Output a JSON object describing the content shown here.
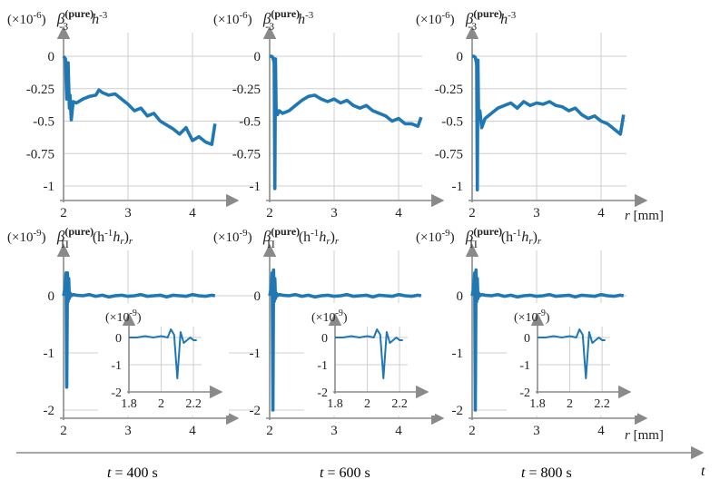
{
  "figure": {
    "time_axis_label": "t",
    "r_axis_label": "r",
    "r_unit": "[mm]",
    "r_unit_bottom": "[mm]",
    "time_labels": [
      {
        "prefix": "t",
        "value": "= 400 s"
      },
      {
        "prefix": "t",
        "value": "= 600 s"
      },
      {
        "prefix": "t",
        "value": "= 800 s"
      }
    ],
    "top_label": {
      "beta": "β",
      "sub": "-3",
      "sup": "(pure)",
      "h": "h",
      "hsup": "-3",
      "scale": "(×10",
      "scale_exp": "-6",
      "scale_close": ")"
    },
    "bottom_label": {
      "beta": "β",
      "sub": "Π",
      "sup": "(pure)",
      "text": " (h",
      "hsup": "-1",
      "hr": "h",
      "hrsub": "r",
      "close": ")",
      "rsub": "r",
      "scale": "(×10",
      "scale_exp": "-9",
      "scale_close": ")"
    },
    "inset_scale": {
      "scale": "(×10",
      "scale_exp": "-9",
      "scale_close": ")"
    }
  },
  "chart_data": [
    {
      "type": "line",
      "panel": "top-1",
      "time": "400 s",
      "x_ticks": [
        "2",
        "3",
        "4"
      ],
      "y_ticks": [
        "0",
        "-0.25",
        "-0.5",
        "-0.75",
        "-1"
      ],
      "xlim": [
        2,
        4.4
      ],
      "ylim": [
        -1.05,
        0.05
      ],
      "series": [
        {
          "x": [
            2.0,
            2.03,
            2.05,
            2.07,
            2.09,
            2.1,
            2.12,
            2.15,
            2.2,
            2.3,
            2.4,
            2.5,
            2.55,
            2.6,
            2.7,
            2.8,
            2.9,
            3.0,
            3.1,
            3.2,
            3.3,
            3.4,
            3.5,
            3.6,
            3.7,
            3.8,
            3.9,
            4.0,
            4.1,
            4.2,
            4.3,
            4.35
          ],
          "y": [
            0.0,
            -0.02,
            -0.33,
            -0.05,
            -0.4,
            -0.3,
            -0.49,
            -0.35,
            -0.36,
            -0.33,
            -0.31,
            -0.3,
            -0.26,
            -0.28,
            -0.3,
            -0.29,
            -0.33,
            -0.37,
            -0.42,
            -0.4,
            -0.46,
            -0.44,
            -0.5,
            -0.53,
            -0.56,
            -0.6,
            -0.55,
            -0.65,
            -0.62,
            -0.66,
            -0.68,
            -0.52
          ]
        }
      ]
    },
    {
      "type": "line",
      "panel": "top-2",
      "time": "600 s",
      "x_ticks": [
        "2",
        "3",
        "4"
      ],
      "y_ticks": [
        "0",
        "-0.25",
        "-0.5",
        "-0.75",
        "-1"
      ],
      "xlim": [
        2,
        4.4
      ],
      "ylim": [
        -1.05,
        0.05
      ],
      "series": [
        {
          "x": [
            2.0,
            2.03,
            2.05,
            2.07,
            2.08,
            2.09,
            2.1,
            2.12,
            2.15,
            2.2,
            2.3,
            2.4,
            2.5,
            2.6,
            2.7,
            2.8,
            2.9,
            3.0,
            3.1,
            3.2,
            3.3,
            3.4,
            3.5,
            3.6,
            3.7,
            3.8,
            3.9,
            4.0,
            4.1,
            4.2,
            4.3,
            4.35
          ],
          "y": [
            0.0,
            0.0,
            -0.01,
            -0.05,
            -1.02,
            -0.02,
            -0.4,
            -0.45,
            -0.42,
            -0.44,
            -0.42,
            -0.38,
            -0.34,
            -0.31,
            -0.3,
            -0.33,
            -0.35,
            -0.33,
            -0.36,
            -0.34,
            -0.38,
            -0.4,
            -0.38,
            -0.42,
            -0.44,
            -0.46,
            -0.5,
            -0.48,
            -0.52,
            -0.52,
            -0.54,
            -0.47
          ]
        }
      ]
    },
    {
      "type": "line",
      "panel": "top-3",
      "time": "800 s",
      "x_ticks": [
        "2",
        "3",
        "4"
      ],
      "y_ticks": [
        "0",
        "-0.25",
        "-0.5",
        "-0.75",
        "-1"
      ],
      "xlim": [
        2,
        4.4
      ],
      "ylim": [
        -1.05,
        0.05
      ],
      "series": [
        {
          "x": [
            2.0,
            2.03,
            2.05,
            2.07,
            2.08,
            2.09,
            2.1,
            2.12,
            2.15,
            2.2,
            2.3,
            2.4,
            2.5,
            2.6,
            2.7,
            2.8,
            2.9,
            3.0,
            3.1,
            3.2,
            3.3,
            3.4,
            3.5,
            3.6,
            3.7,
            3.8,
            3.9,
            4.0,
            4.1,
            4.2,
            4.3,
            4.35
          ],
          "y": [
            0.0,
            0.0,
            -0.01,
            -0.06,
            -1.03,
            -0.03,
            -0.48,
            -0.42,
            -0.55,
            -0.48,
            -0.44,
            -0.4,
            -0.38,
            -0.36,
            -0.4,
            -0.35,
            -0.38,
            -0.36,
            -0.37,
            -0.35,
            -0.38,
            -0.39,
            -0.42,
            -0.4,
            -0.45,
            -0.48,
            -0.46,
            -0.5,
            -0.52,
            -0.56,
            -0.6,
            -0.45
          ]
        }
      ]
    },
    {
      "type": "line",
      "panel": "bottom-1",
      "time": "400 s",
      "x_ticks": [
        "2",
        "3",
        "4"
      ],
      "y_ticks": [
        "0",
        "-1",
        "-2"
      ],
      "xlim": [
        2,
        4.4
      ],
      "ylim": [
        -2.1,
        0.45
      ],
      "series": [
        {
          "x": [
            2.0,
            2.02,
            2.04,
            2.05,
            2.06,
            2.07,
            2.08,
            2.09,
            2.1,
            2.12,
            2.15,
            2.2,
            2.3,
            2.4,
            2.5,
            2.6,
            2.7,
            2.8,
            2.9,
            3.0,
            3.1,
            3.2,
            3.3,
            3.4,
            3.5,
            3.6,
            3.7,
            3.8,
            3.9,
            4.0,
            4.1,
            4.2,
            4.3,
            4.35
          ],
          "y": [
            0.0,
            0.1,
            0.4,
            -1.6,
            0.4,
            -0.1,
            0.3,
            -0.05,
            0.05,
            0.0,
            0.02,
            0.01,
            0.0,
            0.02,
            -0.01,
            0.01,
            -0.02,
            0.0,
            0.01,
            -0.01,
            0.0,
            0.02,
            -0.01,
            0.0,
            0.01,
            -0.02,
            0.01,
            0.0,
            -0.01,
            0.02,
            0.0,
            -0.01,
            0.01,
            0.0
          ]
        }
      ],
      "inset": {
        "x_ticks": [
          "1.8",
          "2",
          "2.2"
        ],
        "y_ticks": [
          "0",
          "-1",
          "-2"
        ],
        "xlim": [
          1.8,
          2.25
        ],
        "ylim": [
          -2.1,
          0.5
        ],
        "x": [
          1.8,
          1.85,
          1.9,
          1.95,
          2.0,
          2.04,
          2.06,
          2.08,
          2.1,
          2.12,
          2.14,
          2.16,
          2.18,
          2.2,
          2.22
        ],
        "y": [
          0.0,
          0.0,
          0.05,
          0.0,
          0.05,
          0.0,
          0.3,
          0.1,
          -1.5,
          0.2,
          -0.2,
          -0.1,
          0.0,
          -0.1,
          -0.1
        ]
      }
    },
    {
      "type": "line",
      "panel": "bottom-2",
      "time": "600 s",
      "x_ticks": [
        "2",
        "3",
        "4"
      ],
      "y_ticks": [
        "0",
        "-1",
        "-2"
      ],
      "xlim": [
        2,
        4.4
      ],
      "ylim": [
        -2.1,
        0.45
      ],
      "series": [
        {
          "x": [
            2.0,
            2.02,
            2.04,
            2.05,
            2.06,
            2.07,
            2.08,
            2.09,
            2.1,
            2.12,
            2.15,
            2.2,
            2.3,
            2.4,
            2.5,
            2.6,
            2.7,
            2.8,
            2.9,
            3.0,
            3.1,
            3.2,
            3.3,
            3.4,
            3.5,
            3.6,
            3.7,
            3.8,
            3.9,
            4.0,
            4.1,
            4.2,
            4.3,
            4.35
          ],
          "y": [
            0.0,
            0.1,
            0.4,
            -2.0,
            0.45,
            -0.1,
            0.3,
            -0.05,
            0.05,
            0.0,
            0.02,
            0.01,
            0.0,
            0.02,
            -0.01,
            0.01,
            -0.02,
            0.0,
            0.01,
            -0.01,
            0.0,
            0.02,
            -0.01,
            0.0,
            0.01,
            -0.02,
            0.01,
            0.0,
            -0.01,
            0.02,
            0.0,
            -0.01,
            0.01,
            0.0
          ]
        }
      ],
      "inset": {
        "x_ticks": [
          "1.8",
          "2",
          "2.2"
        ],
        "y_ticks": [
          "0",
          "-1",
          "-2"
        ],
        "xlim": [
          1.8,
          2.25
        ],
        "ylim": [
          -2.1,
          0.5
        ],
        "x": [
          1.8,
          1.85,
          1.9,
          1.95,
          2.0,
          2.04,
          2.06,
          2.08,
          2.1,
          2.12,
          2.14,
          2.16,
          2.18,
          2.2,
          2.22
        ],
        "y": [
          0.0,
          0.0,
          0.05,
          0.0,
          0.05,
          0.0,
          0.3,
          0.1,
          -1.5,
          0.2,
          -0.2,
          -0.1,
          0.0,
          -0.1,
          -0.1
        ]
      }
    },
    {
      "type": "line",
      "panel": "bottom-3",
      "time": "800 s",
      "x_ticks": [
        "2",
        "3",
        "4"
      ],
      "y_ticks": [
        "0",
        "-1",
        "-2"
      ],
      "xlim": [
        2,
        4.4
      ],
      "ylim": [
        -2.1,
        0.45
      ],
      "series": [
        {
          "x": [
            2.0,
            2.02,
            2.04,
            2.05,
            2.06,
            2.07,
            2.08,
            2.09,
            2.1,
            2.12,
            2.15,
            2.2,
            2.3,
            2.4,
            2.5,
            2.6,
            2.7,
            2.8,
            2.9,
            3.0,
            3.1,
            3.2,
            3.3,
            3.4,
            3.5,
            3.6,
            3.7,
            3.8,
            3.9,
            4.0,
            4.1,
            4.2,
            4.3,
            4.35
          ],
          "y": [
            0.0,
            0.1,
            0.4,
            -2.0,
            0.45,
            -0.1,
            0.3,
            -0.05,
            0.05,
            0.0,
            0.02,
            0.01,
            0.0,
            0.02,
            -0.01,
            0.01,
            -0.02,
            0.0,
            0.01,
            -0.01,
            0.0,
            0.02,
            -0.01,
            0.0,
            0.01,
            -0.02,
            0.01,
            0.0,
            -0.01,
            0.02,
            0.0,
            -0.01,
            0.01,
            0.0
          ]
        }
      ],
      "inset": {
        "x_ticks": [
          "1.8",
          "2",
          "2.2"
        ],
        "y_ticks": [
          "0",
          "-1",
          "-2"
        ],
        "xlim": [
          1.8,
          2.25
        ],
        "ylim": [
          -2.1,
          0.5
        ],
        "x": [
          1.8,
          1.85,
          1.9,
          1.95,
          2.0,
          2.04,
          2.06,
          2.08,
          2.1,
          2.12,
          2.14,
          2.16,
          2.18,
          2.2,
          2.22
        ],
        "y": [
          0.0,
          0.0,
          0.05,
          0.0,
          0.05,
          0.0,
          0.3,
          0.1,
          -1.5,
          0.2,
          -0.2,
          -0.1,
          0.0,
          -0.1,
          -0.1
        ]
      }
    }
  ]
}
